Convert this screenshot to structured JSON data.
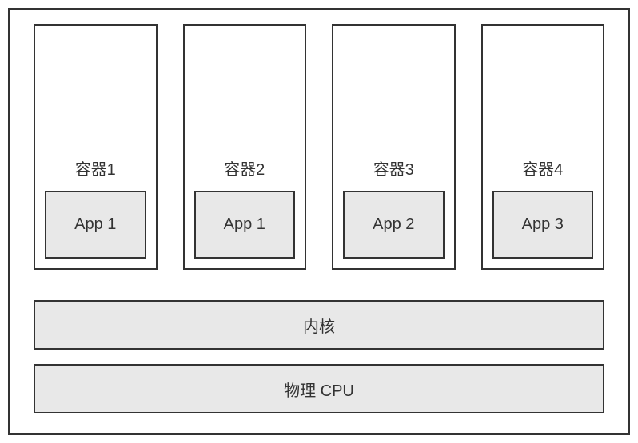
{
  "diagram": {
    "type": "infographic",
    "background_color": "#ffffff",
    "border_color": "#333333",
    "border_width": 2,
    "app_box_color": "#e8e8e8",
    "layer_box_color": "#e8e8e8",
    "label_fontsize": 20,
    "app_fontsize": 20,
    "layer_fontsize": 20,
    "text_color": "#333333",
    "containers": [
      {
        "label": "容器1",
        "app": "App 1"
      },
      {
        "label": "容器2",
        "app": "App 1"
      },
      {
        "label": "容器3",
        "app": "App 2"
      },
      {
        "label": "容器4",
        "app": "App 3"
      }
    ],
    "layers": [
      {
        "label": "内核"
      },
      {
        "label": "物理 CPU"
      }
    ]
  }
}
